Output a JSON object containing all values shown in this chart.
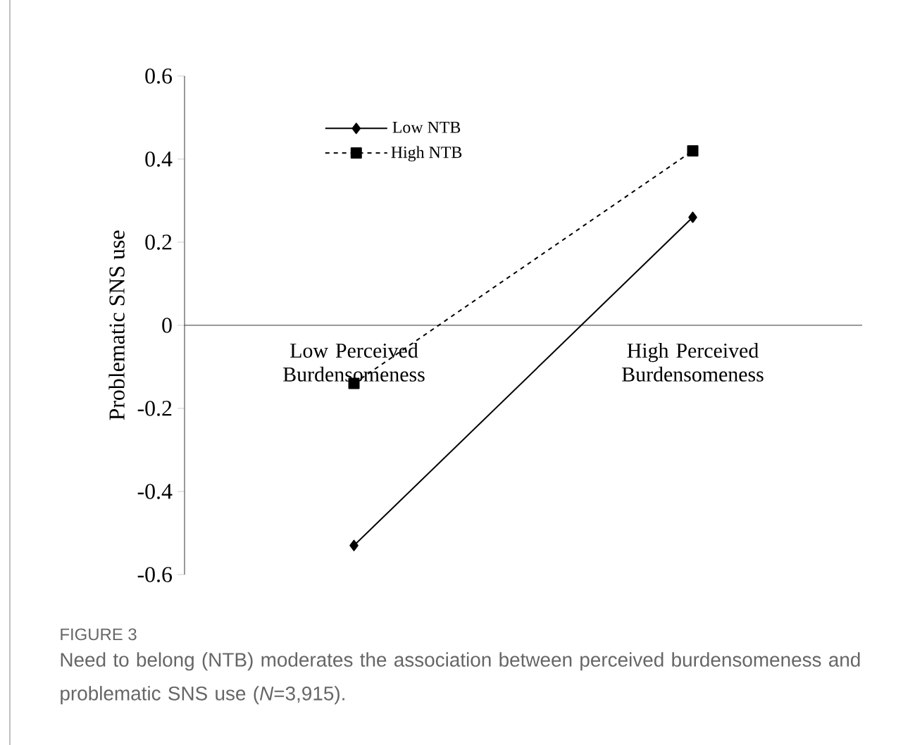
{
  "chart_data": {
    "type": "line",
    "title": "FIGURE 3",
    "annotations": [
      "Need to belong (NTB) moderates the association between perceived burdensomeness and problematic SNS use (*N*=3,915)."
    ],
    "ylabel": "Problematic SNS use",
    "categories": [
      "Low Perceived Burdensomeness",
      "High Perceived Burdensomeness"
    ],
    "series": [
      {
        "name": "Low NTB",
        "color": "#000000",
        "values": [
          -0.53,
          0.26
        ],
        "marker": "diamond",
        "line_style": "solid"
      },
      {
        "name": "High NTB",
        "color": "#000000",
        "values": [
          -0.14,
          0.42
        ],
        "marker": "square",
        "line_style": "dashed"
      }
    ],
    "ylim": [
      -0.6,
      0.6
    ],
    "yticks": [
      -0.6,
      -0.4,
      -0.2,
      0,
      0.2,
      0.4,
      0.6
    ],
    "legend": "top left",
    "grid": false
  }
}
